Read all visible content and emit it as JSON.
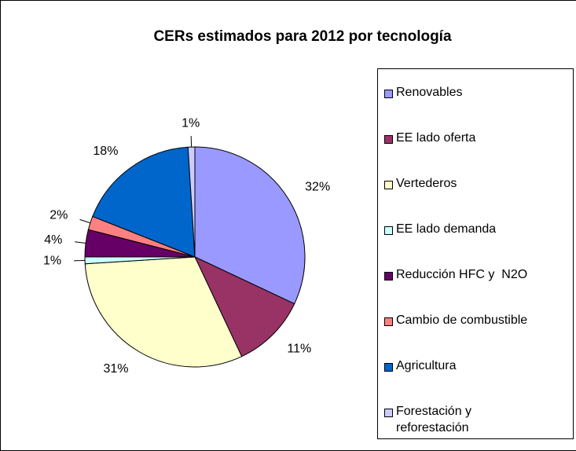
{
  "chart_data": {
    "type": "pie",
    "title": "CERs estimados para 2012 por tecnología",
    "categories": [
      "Renovables",
      "EE lado oferta",
      "Vertederos",
      "EE lado demanda",
      "Reducción HFC y  N2O",
      "Cambio de combustible",
      "Agricultura",
      "Forestación y reforestación"
    ],
    "values": [
      32,
      11,
      31,
      1,
      4,
      2,
      18,
      1
    ],
    "value_labels": [
      "32%",
      "11%",
      "31%",
      "1%",
      "4%",
      "2%",
      "18%",
      "1%"
    ],
    "colors": [
      "#9999FF",
      "#993366",
      "#FFFFCC",
      "#CCFFFF",
      "#660066",
      "#FF8080",
      "#0066CC",
      "#CCCCFF"
    ],
    "legend": "right"
  }
}
